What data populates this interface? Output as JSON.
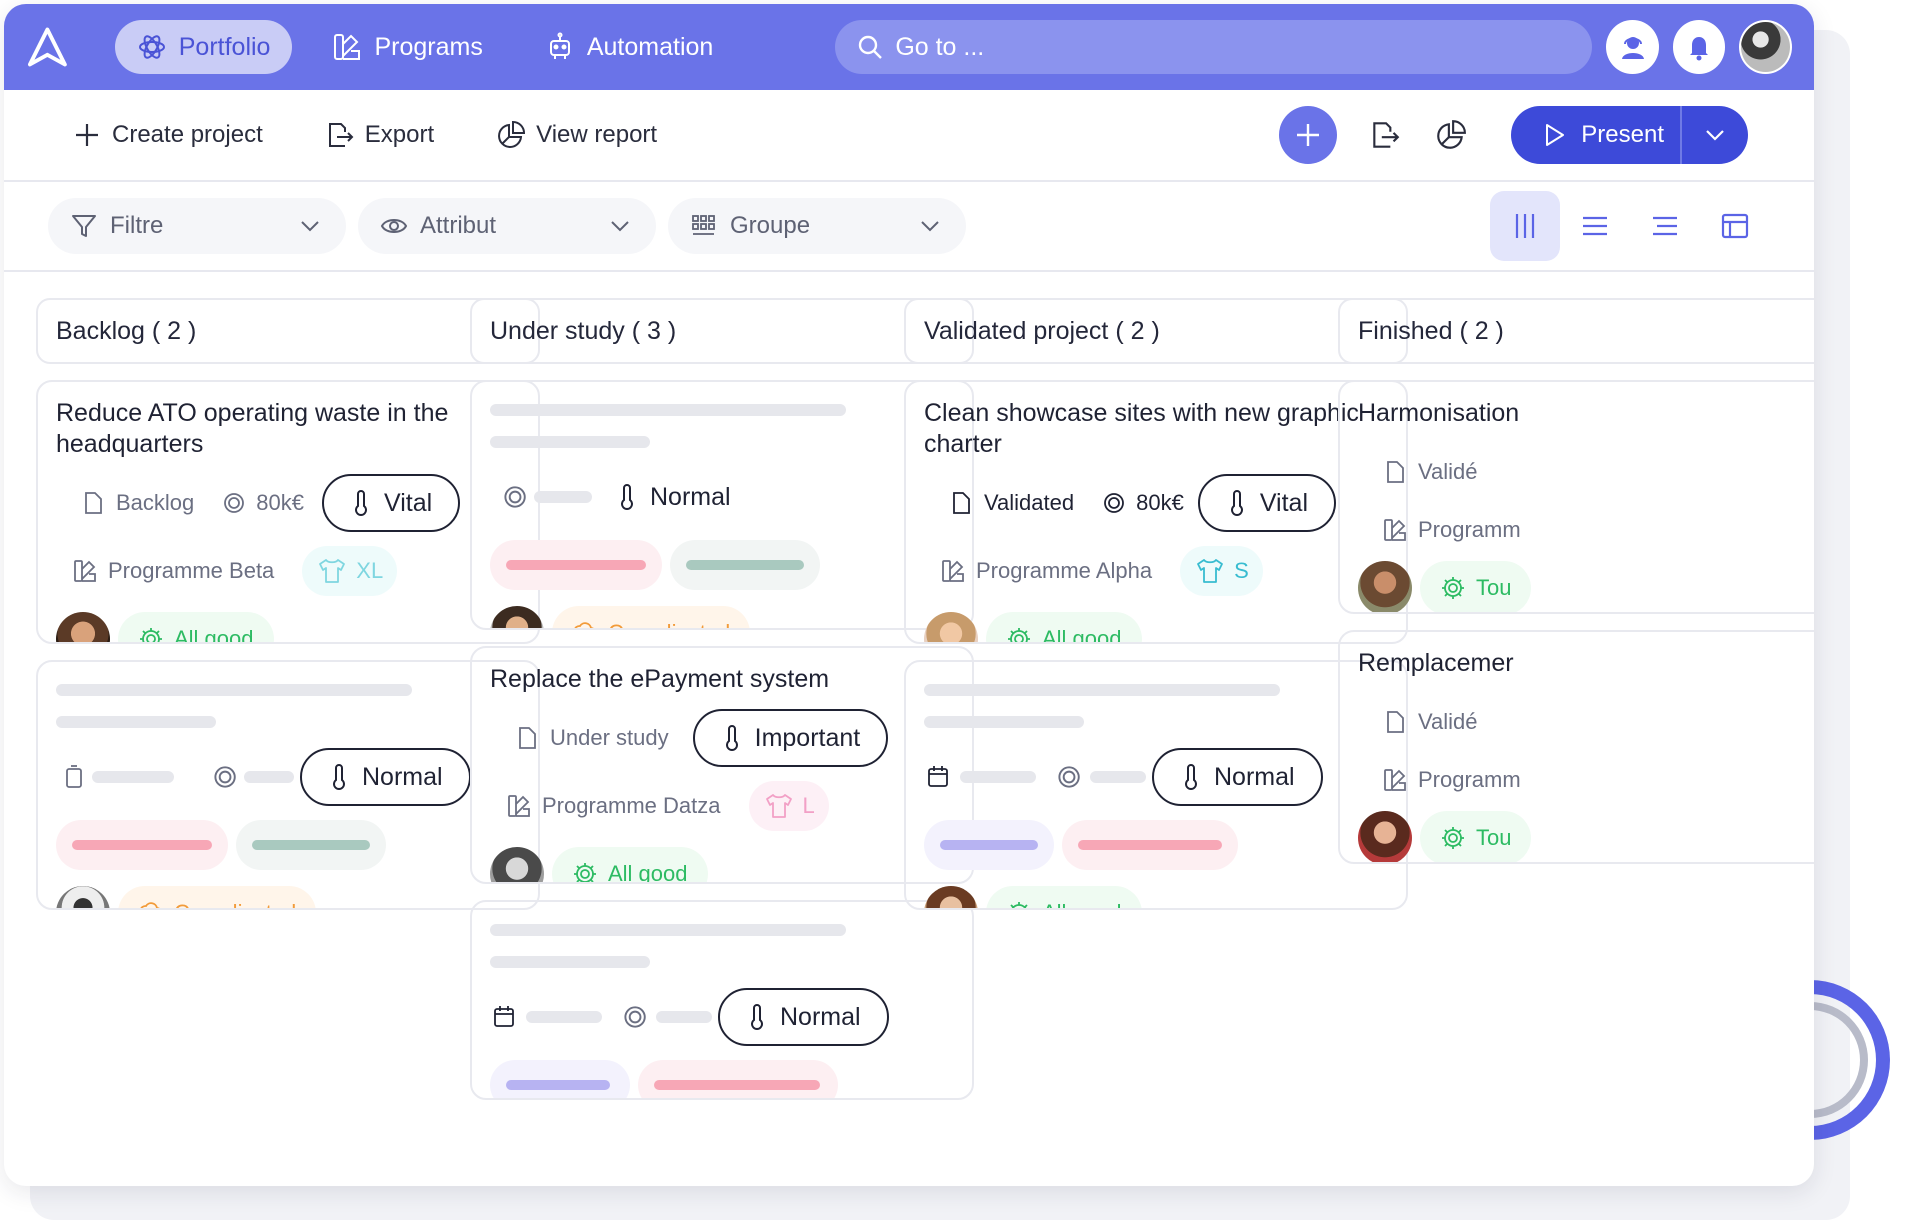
{
  "nav": {
    "items": [
      {
        "label": "Portfolio",
        "active": true,
        "icon": "atom-icon"
      },
      {
        "label": "Programs",
        "active": false,
        "icon": "programs-icon"
      },
      {
        "label": "Automation",
        "active": false,
        "icon": "robot-icon"
      }
    ],
    "search_placeholder": "Go to ..."
  },
  "toolbar": {
    "create": "Create project",
    "export": "Export",
    "view_report": "View report",
    "present": "Present"
  },
  "filters": {
    "filter": "Filtre",
    "attribute": "Attribut",
    "group": "Groupe"
  },
  "colors": {
    "accent": "#6a73e8",
    "primary_button": "#3d4ad9",
    "good": "#2dbb63",
    "complicated": "#f29b3a",
    "progress": "#5b64e6"
  },
  "columns": [
    {
      "title": "Backlog ( 2 )",
      "cards": [
        {
          "title_lines": [
            "Reduce ATO operating waste in the",
            "headquarters"
          ],
          "stage": "Backlog",
          "budget": "80k€",
          "priority": "Vital",
          "program": "Programme Beta",
          "size": "XL",
          "status": "All good",
          "progress": 0.45
        },
        {
          "priority": "Normal",
          "status": "Complicated",
          "progress": 0.45
        }
      ]
    },
    {
      "title": "Under study ( 3 )",
      "cards": [
        {
          "priority": "Normal",
          "status": "Complicated",
          "progress": 0.45
        },
        {
          "title": "Replace the ePayment system",
          "stage": "Under study",
          "priority": "Important",
          "program": "Programme Datza",
          "size": "L",
          "status": "All good",
          "progress": 0.45
        },
        {
          "priority": "Normal"
        }
      ]
    },
    {
      "title": "Validated project  ( 2 )",
      "cards": [
        {
          "title_lines": [
            "Clean showcase sites with new graphic",
            "charter"
          ],
          "stage": "Validated",
          "budget": "80k€",
          "priority": "Vital",
          "program": "Programme Alpha",
          "size": "S",
          "status": "All good",
          "progress": 0.45
        },
        {
          "priority": "Normal",
          "status": "All good",
          "progress": 0.45
        }
      ]
    },
    {
      "title": "Finished ( 2 )",
      "cards": [
        {
          "title": "Harmonisation",
          "stage": "Validé",
          "program": "Programm",
          "status": "Tou",
          "progress": 1
        },
        {
          "title": "Remplacemer",
          "stage": "Validé",
          "program": "Programm",
          "status": "Tou",
          "progress": 1
        }
      ]
    }
  ]
}
